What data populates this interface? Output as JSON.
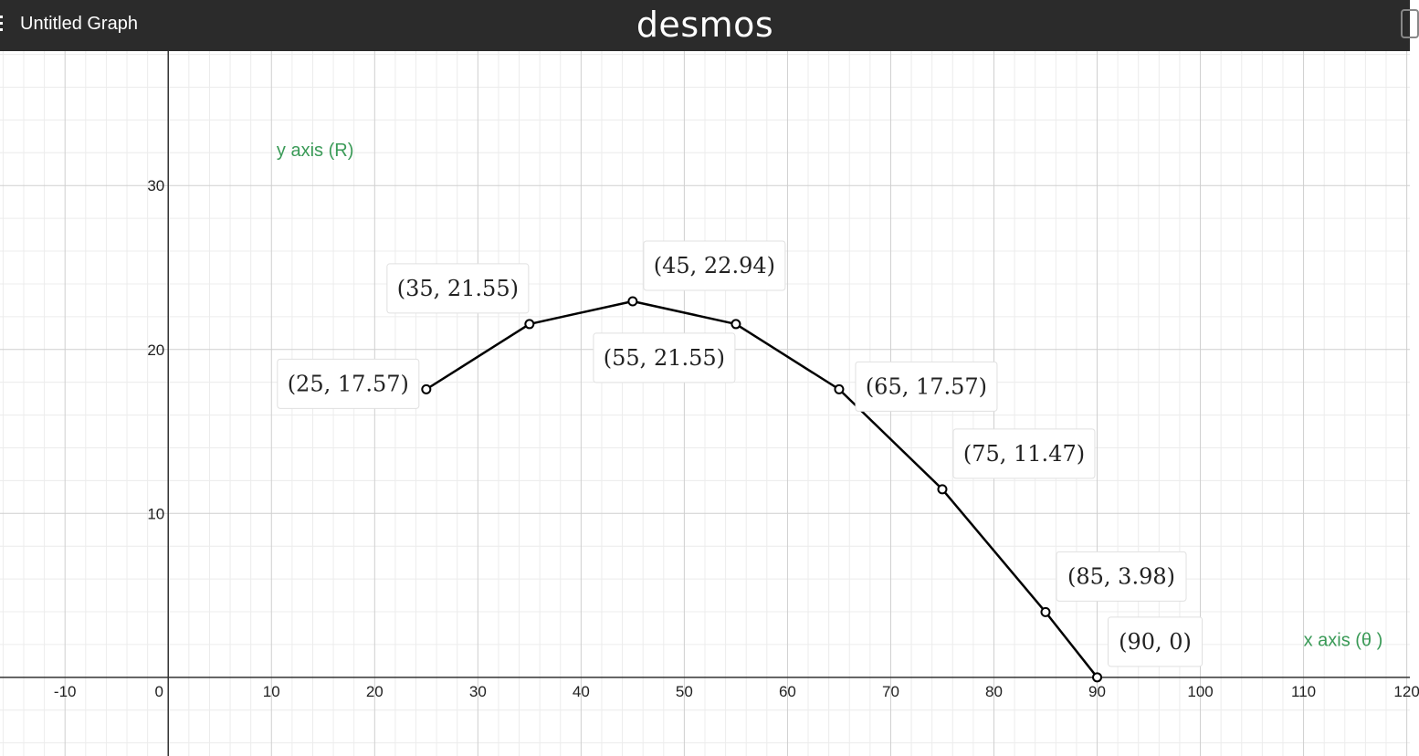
{
  "header": {
    "title": "Untitled Graph",
    "brand": "desmos"
  },
  "graph": {
    "x_tick_labels": [
      "-10",
      "0",
      "10",
      "20",
      "30",
      "40",
      "50",
      "60",
      "70",
      "80",
      "90",
      "100",
      "110",
      "120"
    ],
    "y_tick_labels": [
      "10",
      "20",
      "30"
    ],
    "notes": [
      {
        "text": "y axis (R)",
        "x": 10.5,
        "y": 31.8
      },
      {
        "text": "x axis (θ )",
        "x": 110,
        "y": 1.9
      }
    ]
  },
  "chart_data": {
    "type": "line",
    "xlim": [
      -16.3,
      120.3
    ],
    "ylim": [
      -4.8,
      38.2
    ],
    "grid": true,
    "line_color": "#000000",
    "points": [
      {
        "x": 25,
        "y": 17.57,
        "label": "(25, 17.57)",
        "label_pos": "left"
      },
      {
        "x": 35,
        "y": 21.55,
        "label": "(35, 21.55)",
        "label_pos": "above"
      },
      {
        "x": 45,
        "y": 22.94,
        "label": "(45, 22.94)",
        "label_pos": "above-right"
      },
      {
        "x": 55,
        "y": 21.55,
        "label": "(55, 21.55)",
        "label_pos": "below-left"
      },
      {
        "x": 65,
        "y": 17.57,
        "label": "(65, 17.57)",
        "label_pos": "right"
      },
      {
        "x": 75,
        "y": 11.47,
        "label": "(75, 11.47)",
        "label_pos": "above-right"
      },
      {
        "x": 85,
        "y": 3.98,
        "label": "(85, 3.98)",
        "label_pos": "above-right"
      },
      {
        "x": 90,
        "y": 0,
        "label": "(90, 0)",
        "label_pos": "above-right"
      }
    ]
  }
}
